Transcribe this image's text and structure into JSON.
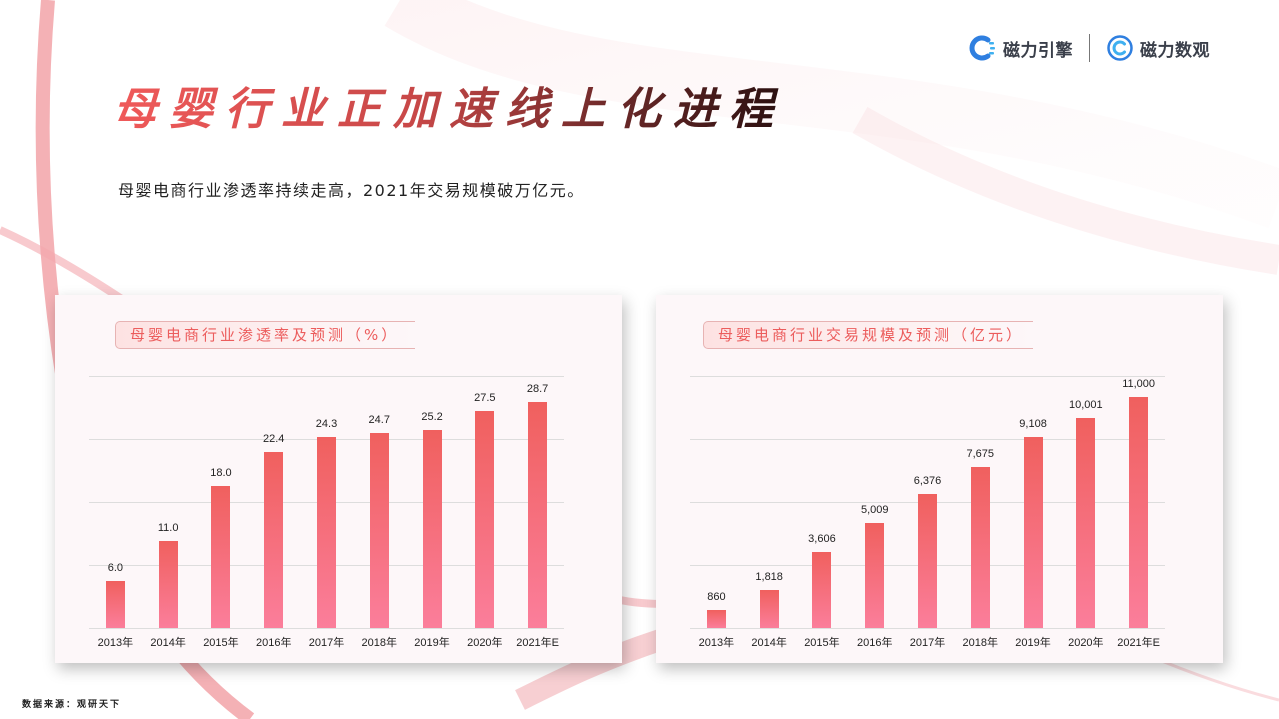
{
  "header": {
    "logos": [
      {
        "name": "磁力引擎",
        "icon": "cili-engine-logo-icon",
        "color": "#2f7fe0"
      },
      {
        "name": "磁力数观",
        "icon": "cili-shuguan-logo-icon",
        "color": "#2f7fe0"
      }
    ]
  },
  "title": "母婴行业正加速线上化进程",
  "subtitle": "母婴电商行业渗透率持续走高，2021年交易规模破万亿元。",
  "source": "数据来源：观研天下",
  "colors": {
    "accent": "#ec5d5d",
    "bar_top": "#f0605e",
    "bar_bottom": "#fb7e9b",
    "card_bg": "#fdf7f9"
  },
  "chart_data": [
    {
      "type": "bar",
      "title": "母婴电商行业渗透率及预测（%）",
      "categories": [
        "2013年",
        "2014年",
        "2015年",
        "2016年",
        "2017年",
        "2018年",
        "2019年",
        "2020年",
        "2021年E"
      ],
      "values": [
        6.0,
        11.0,
        18.0,
        22.4,
        24.3,
        24.7,
        25.2,
        27.5,
        28.7
      ],
      "value_labels": [
        "6.0",
        "11.0",
        "18.0",
        "22.4",
        "24.3",
        "24.7",
        "25.2",
        "27.5",
        "28.7"
      ],
      "xlabel": "",
      "ylabel": "",
      "ylim": [
        0,
        32
      ],
      "grid": true,
      "gridlines": [
        0,
        8,
        16,
        24,
        32
      ],
      "legend": "none"
    },
    {
      "type": "bar",
      "title": "母婴电商行业交易规模及预测（亿元）",
      "categories": [
        "2013年",
        "2014年",
        "2015年",
        "2016年",
        "2017年",
        "2018年",
        "2019年",
        "2020年",
        "2021年E"
      ],
      "values": [
        860,
        1818,
        3606,
        5009,
        6376,
        7675,
        9108,
        10001,
        11000
      ],
      "value_labels": [
        "860",
        "1,818",
        "3,606",
        "5,009",
        "6,376",
        "7,675",
        "9,108",
        "10,001",
        "11,000"
      ],
      "xlabel": "",
      "ylabel": "",
      "ylim": [
        0,
        12000
      ],
      "grid": true,
      "gridlines": [
        0,
        3000,
        6000,
        9000,
        12000
      ],
      "legend": "none"
    }
  ]
}
